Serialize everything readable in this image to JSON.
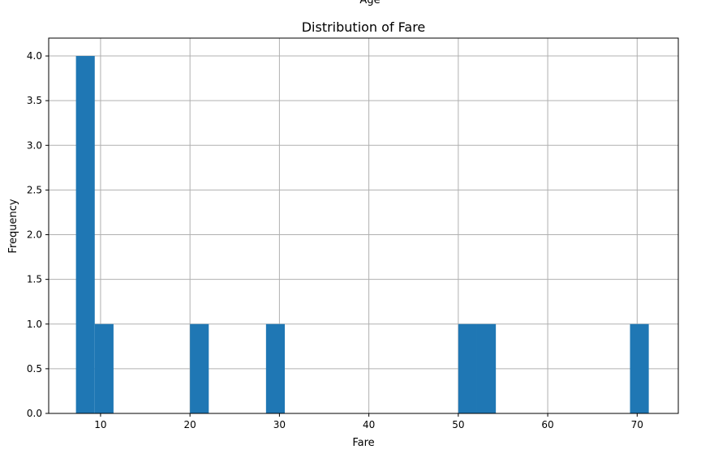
{
  "top_label": "Age",
  "chart_data": {
    "type": "bar",
    "title": "Distribution of Fare",
    "xlabel": "Fare",
    "ylabel": "Frequency",
    "xlim": [
      4.2,
      74.6
    ],
    "ylim": [
      0,
      4.2
    ],
    "grid": true,
    "color": "#1f77b4",
    "xticks": [
      10,
      20,
      30,
      40,
      50,
      60,
      70
    ],
    "xtick_labels": [
      "10",
      "20",
      "30",
      "40",
      "50",
      "60",
      "70"
    ],
    "yticks": [
      0,
      0.5,
      1,
      1.5,
      2,
      2.5,
      3,
      3.5,
      4
    ],
    "ytick_labels": [
      "0.0",
      "0.5",
      "1.0",
      "1.5",
      "2.0",
      "2.5",
      "3.0",
      "3.5",
      "4.0"
    ],
    "bins": [
      {
        "x0": 7.25,
        "x1": 9.35,
        "count": 4
      },
      {
        "x0": 9.35,
        "x1": 11.45,
        "count": 1
      },
      {
        "x0": 20.0,
        "x1": 22.1,
        "count": 1
      },
      {
        "x0": 28.5,
        "x1": 30.6,
        "count": 1
      },
      {
        "x0": 50.0,
        "x1": 52.1,
        "count": 1
      },
      {
        "x0": 52.1,
        "x1": 54.2,
        "count": 1
      },
      {
        "x0": 69.2,
        "x1": 71.3,
        "count": 1
      }
    ]
  }
}
